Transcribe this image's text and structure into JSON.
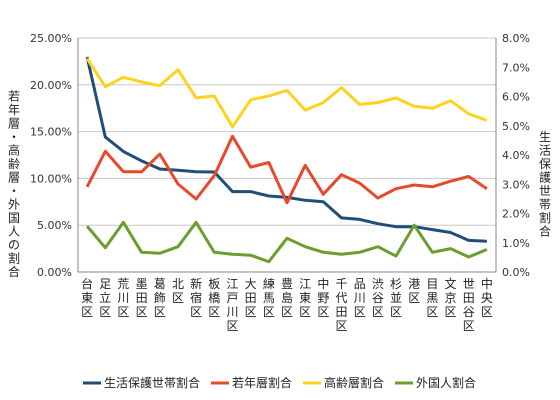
{
  "chart_data": {
    "type": "line",
    "categories": [
      "台東区",
      "足立区",
      "荒川区",
      "墨田区",
      "葛飾区",
      "北区",
      "新宿区",
      "板橋区",
      "江戸川区",
      "大田区",
      "練馬区",
      "豊島区",
      "江東区",
      "中野区",
      "千代田区",
      "品川区",
      "渋谷区",
      "杉並区",
      "港区",
      "目黒区",
      "文京区",
      "世田谷区",
      "中央区"
    ],
    "left_axis": {
      "label": "若年層・高齢層・外国人の割合",
      "min": 0,
      "max": 0.25,
      "ticks": [
        0,
        0.05,
        0.1,
        0.15,
        0.2,
        0.25
      ],
      "tick_labels": [
        "0.00%",
        "5.00%",
        "10.00%",
        "15.00%",
        "20.00%",
        "25.00%"
      ]
    },
    "right_axis": {
      "label": "生活保護世帯割合",
      "min": 0,
      "max": 0.08,
      "ticks": [
        0,
        0.01,
        0.02,
        0.03,
        0.04,
        0.05,
        0.06,
        0.07,
        0.08
      ],
      "tick_labels": [
        "0.0%",
        "1.0%",
        "2.0%",
        "3.0%",
        "4.0%",
        "5.0%",
        "6.0%",
        "7.0%",
        "8.0%"
      ]
    },
    "grid": true,
    "legend_position": "bottom",
    "series": [
      {
        "name": "生活保護世帯割合",
        "axis": "right",
        "color": "#1F4E79",
        "values": [
          0.0735,
          0.0462,
          0.0412,
          0.038,
          0.0352,
          0.0348,
          0.0343,
          0.0342,
          0.0275,
          0.0275,
          0.026,
          0.0255,
          0.0245,
          0.024,
          0.0185,
          0.018,
          0.0165,
          0.0155,
          0.0155,
          0.0145,
          0.0135,
          0.0108,
          0.0105
        ]
      },
      {
        "name": "若年層割合",
        "axis": "left",
        "color": "#E8492B",
        "values": [
          0.091,
          0.129,
          0.107,
          0.107,
          0.126,
          0.094,
          0.078,
          0.103,
          0.145,
          0.112,
          0.117,
          0.074,
          0.114,
          0.083,
          0.104,
          0.095,
          0.079,
          0.089,
          0.093,
          0.091,
          0.097,
          0.102,
          0.089
        ]
      },
      {
        "name": "高齢層割合",
        "axis": "left",
        "color": "#FFD21F",
        "values": [
          0.228,
          0.198,
          0.208,
          0.203,
          0.199,
          0.216,
          0.186,
          0.188,
          0.155,
          0.184,
          0.188,
          0.194,
          0.173,
          0.181,
          0.197,
          0.179,
          0.181,
          0.186,
          0.177,
          0.175,
          0.183,
          0.169,
          0.162
        ]
      },
      {
        "name": "外国人割合",
        "axis": "left",
        "color": "#6A9E2F",
        "values": [
          0.049,
          0.026,
          0.053,
          0.021,
          0.02,
          0.027,
          0.053,
          0.021,
          0.019,
          0.018,
          0.011,
          0.036,
          0.027,
          0.021,
          0.019,
          0.021,
          0.027,
          0.017,
          0.05,
          0.021,
          0.025,
          0.016,
          0.024
        ]
      }
    ]
  }
}
